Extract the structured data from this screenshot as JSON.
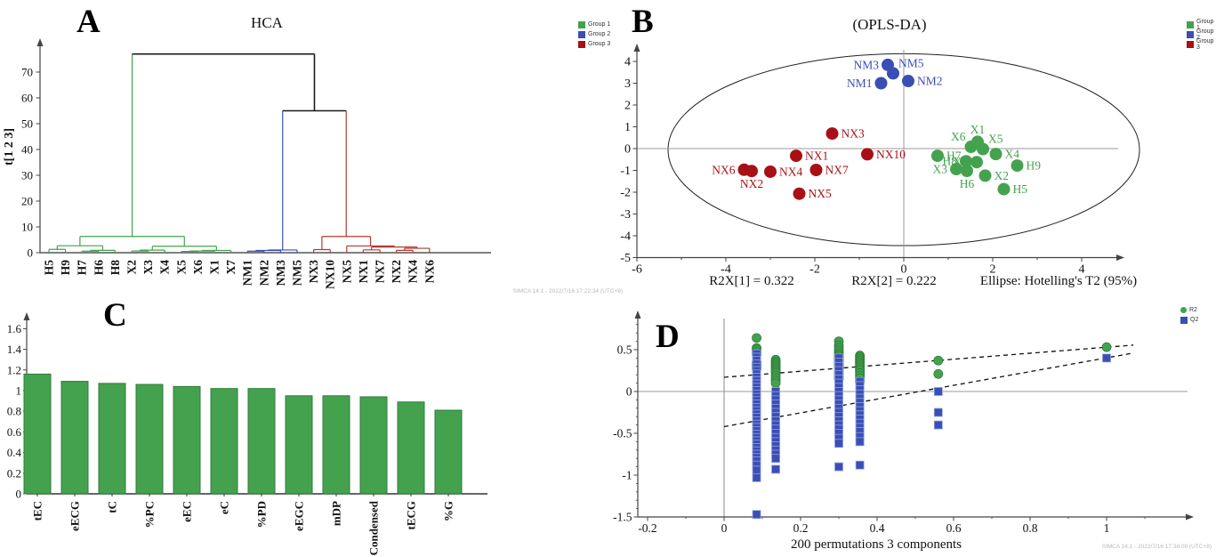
{
  "figure": {
    "panels": [
      {
        "letter": "A"
      },
      {
        "letter": "B"
      },
      {
        "letter": "C"
      },
      {
        "letter": "D"
      }
    ]
  },
  "colors": {
    "group1_green": "#44a24e",
    "group2_blue": "#3b4eb5",
    "group3_red": "#a81016",
    "dendro_red": "#b23a32",
    "axis": "#444444",
    "refline": "#999999"
  },
  "chart_data": [
    {
      "panel": "A",
      "type": "dendrogram",
      "title": "HCA",
      "ylabel": "t[1 2 3]",
      "yticks": [
        0,
        10,
        20,
        30,
        40,
        50,
        60,
        70
      ],
      "ylim": [
        0,
        80
      ],
      "leaves": [
        "H5",
        "H9",
        "H7",
        "H6",
        "H8",
        "X2",
        "X3",
        "X4",
        "X5",
        "X6",
        "X1",
        "X7",
        "NM1",
        "NM2",
        "NM3",
        "NM5",
        "NX3",
        "NX10",
        "NX5",
        "NX1",
        "NX7",
        "NX2",
        "NX4",
        "NX6"
      ],
      "tree": {
        "h": 77,
        "color": "#1a1a1a",
        "children": [
          {
            "h": 6.3,
            "color": "#44a24e",
            "children": [
              {
                "h": 2.7,
                "children": [
                  {
                    "h": 1.3,
                    "children": [
                      "H5",
                      "H9"
                    ]
                  },
                  {
                    "h": 0.9,
                    "children": [
                      {
                        "h": 0.6,
                        "children": [
                          "H7",
                          "H6"
                        ]
                      },
                      "H8"
                    ]
                  }
                ]
              },
              {
                "h": 2.5,
                "children": [
                  {
                    "h": 1.0,
                    "children": [
                      {
                        "h": 0.65,
                        "children": [
                          "X2",
                          "X3"
                        ]
                      },
                      "X4"
                    ]
                  },
                  {
                    "h": 0.85,
                    "children": [
                      {
                        "h": 0.65,
                        "children": [
                          {
                            "h": 0.5,
                            "children": [
                              "X5",
                              "X6"
                            ]
                          },
                          "X1"
                        ]
                      },
                      "X7"
                    ]
                  }
                ]
              }
            ]
          },
          {
            "h": 55,
            "color": "#1a1a1a",
            "children": [
              {
                "h": 1.05,
                "color": "#3b4eb5",
                "children": [
                  {
                    "h": 0.85,
                    "children": [
                      {
                        "h": 0.6,
                        "children": [
                          "NM1",
                          "NM2"
                        ]
                      },
                      "NM3"
                    ]
                  },
                  "NM5"
                ]
              },
              {
                "h": 6.3,
                "color": "#b23a32",
                "children": [
                  {
                    "h": 1.2,
                    "children": [
                      "NX3",
                      "NX10"
                    ]
                  },
                  {
                    "h": 2.6,
                    "children": [
                      "NX5",
                      {
                        "h": 2.2,
                        "children": [
                          {
                            "h": 1.1,
                            "children": [
                              "NX1",
                              "NX7"
                            ]
                          },
                          {
                            "h": 1.7,
                            "children": [
                              {
                                "h": 0.9,
                                "children": [
                                  "NX2",
                                  "NX4"
                                ]
                              },
                              "NX6"
                            ]
                          }
                        ]
                      }
                    ]
                  }
                ]
              }
            ]
          }
        ]
      },
      "legend": [
        {
          "label": "Group 1",
          "color": "#44a24e"
        },
        {
          "label": "Group 2",
          "color": "#3b4eb5"
        },
        {
          "label": "Group 3",
          "color": "#a81016"
        }
      ],
      "watermark": "SIMCA 14.1 - 2022/7/16 17:22:34 (UTC+8)"
    },
    {
      "panel": "B",
      "type": "scatter",
      "title": "(OPLS-DA)",
      "xticks": [
        -6,
        -4,
        -2,
        0,
        2,
        4
      ],
      "yticks": [
        4,
        3,
        2,
        1,
        0,
        -1,
        -2,
        -3,
        -4,
        -5
      ],
      "xlim": [
        -6,
        5.6
      ],
      "ylim": [
        -5,
        4.6
      ],
      "ellipse": {
        "cx": 0,
        "cy": -0.05,
        "rx": 5.3,
        "ry": 4.4
      },
      "annotations": [
        "R2X[1] = 0.322",
        "R2X[2] = 0.222",
        "Ellipse: Hotelling's T2 (95%)"
      ],
      "series": [
        {
          "name": "Group 1",
          "color": "#44a24e",
          "points": [
            {
              "id": "X1",
              "x": 1.66,
              "y": 0.31,
              "side": "top"
            },
            {
              "id": "X6",
              "x": 1.51,
              "y": 0.08,
              "side": "topleft"
            },
            {
              "id": "X5",
              "x": 1.78,
              "y": -0.02,
              "side": "topright"
            },
            {
              "id": "X4",
              "x": 2.07,
              "y": -0.25,
              "side": "right"
            },
            {
              "id": "H7",
              "x": 0.76,
              "y": -0.33,
              "side": "right"
            },
            {
              "id": "H8",
              "x": 1.4,
              "y": -0.58,
              "side": "left"
            },
            {
              "id": "X7",
              "x": 1.64,
              "y": -0.62,
              "side": "left"
            },
            {
              "id": "H9",
              "x": 2.55,
              "y": -0.78,
              "side": "right"
            },
            {
              "id": "X3",
              "x": 1.18,
              "y": -0.94,
              "side": "left"
            },
            {
              "id": "H6",
              "x": 1.42,
              "y": -1.02,
              "side": "bottom"
            },
            {
              "id": "X2",
              "x": 1.83,
              "y": -1.24,
              "side": "right"
            },
            {
              "id": "H5",
              "x": 2.25,
              "y": -1.86,
              "side": "right"
            }
          ]
        },
        {
          "name": "Group 2",
          "color": "#3b4eb5",
          "points": [
            {
              "id": "NM3",
              "x": -0.36,
              "y": 3.84,
              "side": "left"
            },
            {
              "id": "NM5",
              "x": -0.24,
              "y": 3.45,
              "side": "topright"
            },
            {
              "id": "NM1",
              "x": -0.51,
              "y": 3.0,
              "side": "left"
            },
            {
              "id": "NM2",
              "x": 0.1,
              "y": 3.1,
              "side": "right"
            }
          ]
        },
        {
          "name": "Group 3",
          "color": "#a81016",
          "points": [
            {
              "id": "NX3",
              "x": -1.61,
              "y": 0.69,
              "side": "right"
            },
            {
              "id": "NX1",
              "x": -2.42,
              "y": -0.33,
              "side": "right"
            },
            {
              "id": "NX10",
              "x": -0.82,
              "y": -0.26,
              "side": "right"
            },
            {
              "id": "NX6",
              "x": -3.59,
              "y": -0.97,
              "side": "left"
            },
            {
              "id": "NX2",
              "x": -3.42,
              "y": -1.03,
              "side": "bottom"
            },
            {
              "id": "NX4",
              "x": -3.0,
              "y": -1.06,
              "side": "right"
            },
            {
              "id": "NX7",
              "x": -1.97,
              "y": -0.98,
              "side": "right"
            },
            {
              "id": "NX5",
              "x": -2.35,
              "y": -2.07,
              "side": "right"
            }
          ]
        }
      ],
      "legend": [
        {
          "label": "Group 1",
          "color": "#44a24e"
        },
        {
          "label": "Group 2",
          "color": "#3b4eb5"
        },
        {
          "label": "Group 3",
          "color": "#a81016"
        }
      ]
    },
    {
      "panel": "C",
      "type": "bar",
      "categories": [
        "tEC",
        "eECG",
        "tC",
        "%PC",
        "eEC",
        "eC",
        "%PD",
        "eEGC",
        "mDP",
        "Condensed",
        "tECG",
        "%G"
      ],
      "values": [
        1.16,
        1.09,
        1.07,
        1.06,
        1.04,
        1.02,
        1.02,
        0.95,
        0.95,
        0.94,
        0.89,
        0.81
      ],
      "yticks": [
        0,
        0.2,
        0.4,
        0.6,
        0.8,
        1,
        1.2,
        1.4,
        1.6
      ],
      "ylim": [
        0,
        1.75
      ],
      "bar_color": "#44a24e",
      "bar_edge": "#2d7d38"
    },
    {
      "panel": "D",
      "type": "scatter-permutation",
      "xlabel": "200 permutations 3 components",
      "xticks": [
        -0.2,
        0,
        0.2,
        0.4,
        0.6,
        0.8,
        1
      ],
      "yticks": [
        0.5,
        0,
        -0.5,
        -1,
        -1.5
      ],
      "xlim": [
        -0.25,
        1.18
      ],
      "ylim": [
        -1.58,
        0.9
      ],
      "lines": [
        {
          "series": "R2",
          "x1": 0,
          "y1": 0.17,
          "x2": 1.07,
          "y2": 0.555
        },
        {
          "series": "Q2",
          "x1": 0,
          "y1": -0.42,
          "x2": 1.07,
          "y2": 0.46
        }
      ],
      "series": [
        {
          "name": "R2",
          "color": "#44a24e",
          "edge": "#2d7d38",
          "marker": "circle",
          "columns": [
            {
              "x": 0.085,
              "values": [
                0.64,
                0.52,
                0.5,
                0.47,
                0.44,
                0.35,
                0.33,
                0.31,
                0.29,
                0.27
              ]
            },
            {
              "x": 0.135,
              "values": [
                0.38,
                0.36,
                0.34,
                0.32,
                0.3,
                0.28,
                0.26,
                0.24,
                0.22,
                0.19,
                0.16,
                0.13,
                0.1
              ]
            },
            {
              "x": 0.3,
              "values": [
                0.6,
                0.55,
                0.52,
                0.49,
                0.46,
                0.44,
                0.42,
                0.4,
                0.38,
                0.36,
                0.34,
                0.32,
                0.3,
                0.27,
                0.24,
                0.21,
                0.18,
                0.15
              ]
            },
            {
              "x": 0.355,
              "values": [
                0.43,
                0.41,
                0.39,
                0.37,
                0.35,
                0.33,
                0.31,
                0.29,
                0.27,
                0.25,
                0.22,
                0.19,
                0.16,
                0.12
              ]
            },
            {
              "x": 0.56,
              "values": [
                0.37,
                0.21
              ]
            },
            {
              "x": 1.0,
              "values": [
                0.53
              ]
            }
          ]
        },
        {
          "name": "Q2",
          "color": "#3b4eb5",
          "edge": "#8fa0e0",
          "marker": "square",
          "columns": [
            {
              "x": 0.085,
              "values": [
                0.45,
                0.41,
                0.37,
                0.33,
                0.29,
                0.25,
                0.21,
                0.17,
                0.13,
                0.09,
                0.05,
                0.01,
                -0.03,
                -0.07,
                -0.11,
                -0.15,
                -0.19,
                -0.23,
                -0.27,
                -0.31,
                -0.35,
                -0.39,
                -0.43,
                -0.47,
                -0.51,
                -0.55,
                -0.59,
                -0.63,
                -0.67,
                -0.71,
                -0.75,
                -0.79,
                -0.83,
                -0.88,
                -0.94,
                -1.03,
                -1.47
              ]
            },
            {
              "x": 0.135,
              "values": [
                0.0,
                -0.05,
                -0.1,
                -0.15,
                -0.2,
                -0.25,
                -0.3,
                -0.35,
                -0.4,
                -0.45,
                -0.5,
                -0.55,
                -0.6,
                -0.65,
                -0.7,
                -0.75,
                -0.8,
                -0.93
              ]
            },
            {
              "x": 0.3,
              "values": [
                0.4,
                0.35,
                0.3,
                0.25,
                0.2,
                0.15,
                0.1,
                0.05,
                0.0,
                -0.05,
                -0.1,
                -0.15,
                -0.2,
                -0.25,
                -0.3,
                -0.35,
                -0.4,
                -0.45,
                -0.5,
                -0.56,
                -0.62,
                -0.9
              ]
            },
            {
              "x": 0.355,
              "values": [
                0.12,
                0.07,
                0.02,
                -0.03,
                -0.08,
                -0.13,
                -0.18,
                -0.23,
                -0.28,
                -0.33,
                -0.38,
                -0.43,
                -0.48,
                -0.54,
                -0.6,
                -0.88
              ]
            },
            {
              "x": 0.56,
              "values": [
                0.0,
                -0.25,
                -0.4
              ]
            },
            {
              "x": 1.0,
              "values": [
                0.4
              ]
            }
          ]
        }
      ],
      "legend": [
        {
          "label": "R2",
          "color": "#44a24e",
          "marker": "circle"
        },
        {
          "label": "Q2",
          "color": "#3b4eb5",
          "marker": "square"
        }
      ],
      "watermark": "SIMCA 14.1 - 2022/7/16 17:38:08 (UTC+8)"
    }
  ]
}
